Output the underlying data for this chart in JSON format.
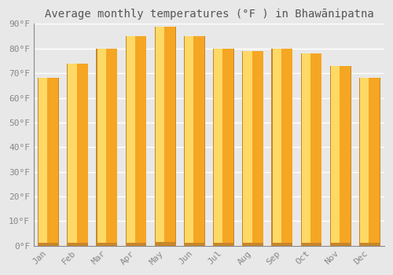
{
  "title": "Average monthly temperatures (°F ) in Bhawānipatna",
  "months": [
    "Jan",
    "Feb",
    "Mar",
    "Apr",
    "May",
    "Jun",
    "Jul",
    "Aug",
    "Sep",
    "Oct",
    "Nov",
    "Dec"
  ],
  "values": [
    68,
    74,
    80,
    85,
    89,
    85,
    80,
    79,
    80,
    78,
    73,
    68
  ],
  "ylim": [
    0,
    90
  ],
  "yticks": [
    0,
    10,
    20,
    30,
    40,
    50,
    60,
    70,
    80,
    90
  ],
  "ytick_labels": [
    "0°F",
    "10°F",
    "20°F",
    "30°F",
    "40°F",
    "50°F",
    "60°F",
    "70°F",
    "80°F",
    "90°F"
  ],
  "background_color": "#e8e8e8",
  "grid_color": "#ffffff",
  "title_fontsize": 10,
  "tick_fontsize": 8,
  "bar_color_left": "#FFD966",
  "bar_color_right": "#F5A623",
  "bar_border_color": "#c8862a",
  "bar_width": 0.72
}
